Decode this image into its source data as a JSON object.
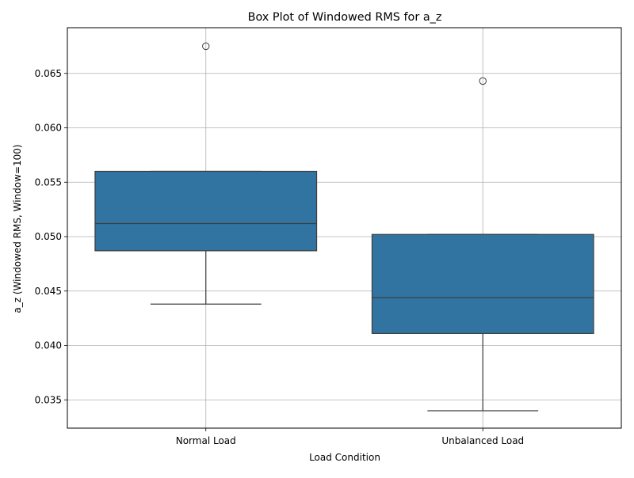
{
  "chart_data": {
    "type": "box",
    "title": "Box Plot of Windowed RMS for a_z",
    "xlabel": "Load Condition",
    "ylabel": "a_z (Windowed RMS, Window=100)",
    "categories": [
      "Normal Load",
      "Unbalanced Load"
    ],
    "boxes": [
      {
        "category": "Normal Load",
        "whisker_low": 0.0438,
        "q1": 0.0487,
        "median": 0.0512,
        "q3": 0.056,
        "whisker_high": 0.056,
        "outliers": [
          0.0675
        ]
      },
      {
        "category": "Unbalanced Load",
        "whisker_low": 0.034,
        "q1": 0.0411,
        "median": 0.0444,
        "q3": 0.0502,
        "whisker_high": 0.0502,
        "outliers": [
          0.0643
        ]
      }
    ],
    "ylim": [
      0.0324,
      0.0692
    ],
    "yticks": [
      0.035,
      0.04,
      0.045,
      0.05,
      0.055,
      0.06,
      0.065
    ],
    "ytick_labels": [
      "0.035",
      "0.040",
      "0.045",
      "0.050",
      "0.055",
      "0.060",
      "0.065"
    ],
    "grid": true,
    "colors": {
      "box_fill": "#3274a1",
      "line": "#3d3d3d",
      "grid": "#b0b0b0",
      "axis": "#000000"
    }
  }
}
